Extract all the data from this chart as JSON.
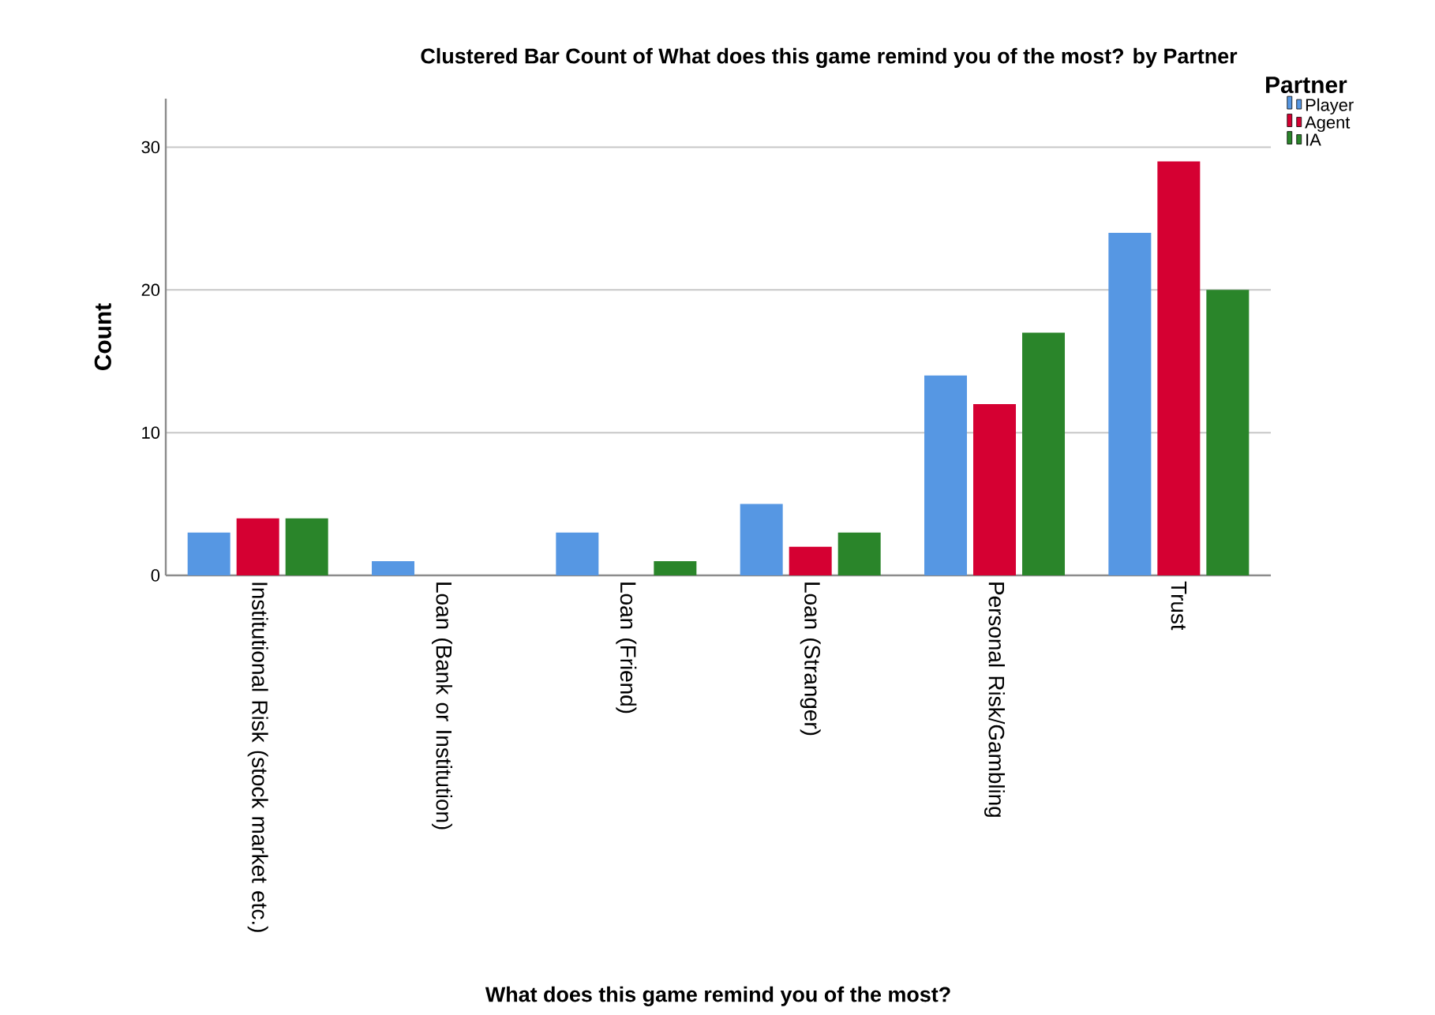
{
  "chart_data": {
    "type": "bar",
    "title": "Clustered Bar Count of What does this game remind you of the most? by Partner",
    "xlabel": "What does this game remind you of the most?",
    "ylabel": "Count",
    "legend_title": "Partner",
    "categories": [
      "Institutional Risk (stock market etc.)",
      "Loan (Bank or Institution)",
      "Loan (Friend)",
      "Loan (Stranger)",
      "Personal Risk/Gambling",
      "Trust"
    ],
    "series": [
      {
        "name": "Player",
        "color": "#5697e3",
        "values": [
          3,
          1,
          3,
          5,
          14,
          24
        ]
      },
      {
        "name": "Agent",
        "color": "#d50032",
        "values": [
          4,
          0,
          0,
          2,
          12,
          29
        ]
      },
      {
        "name": "IA",
        "color": "#2a852a",
        "values": [
          4,
          0,
          1,
          3,
          17,
          20
        ]
      }
    ],
    "ylim": [
      0,
      33.4
    ],
    "yticks": [
      0,
      10,
      20,
      30
    ],
    "grid": "y",
    "legend": "top right"
  }
}
